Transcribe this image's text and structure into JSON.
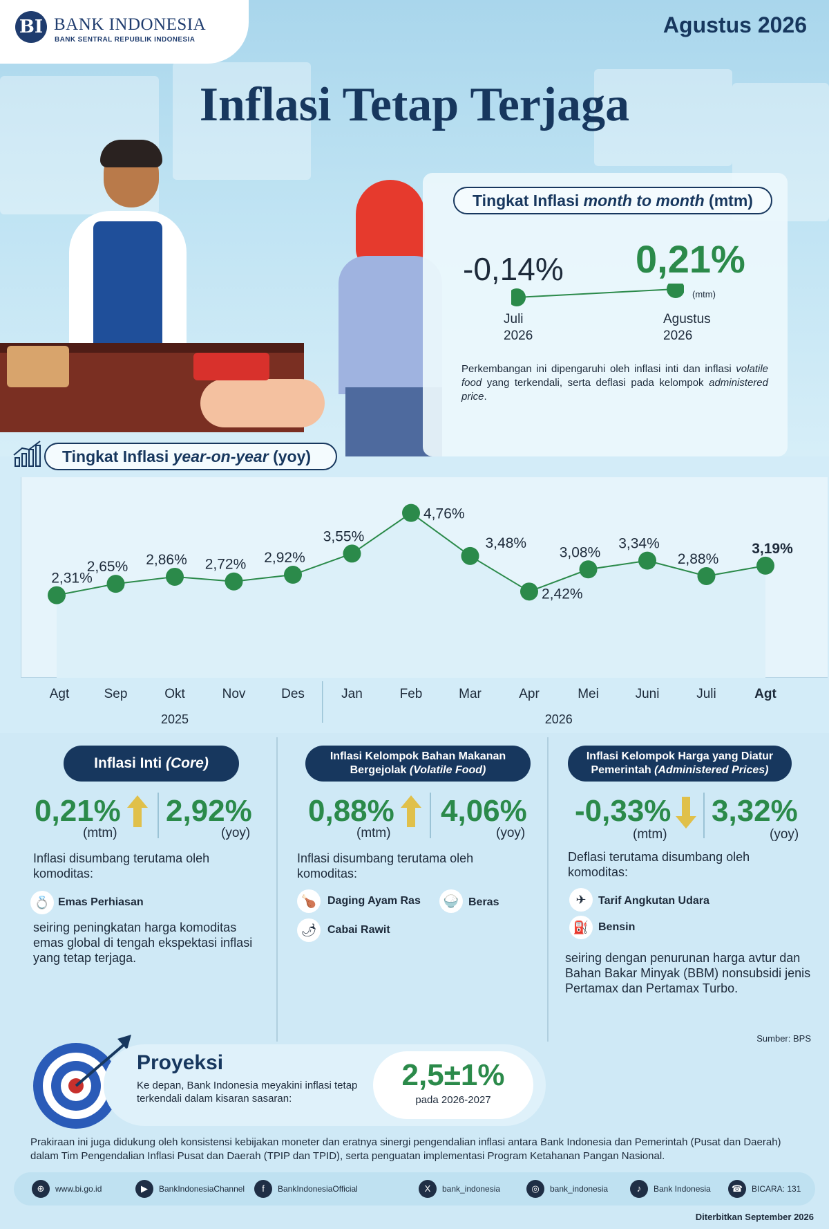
{
  "header": {
    "logo_mark": "BI",
    "org_name": "BANK INDONESIA",
    "org_sub": "BANK SENTRAL REPUBLIK INDONESIA",
    "period": "Agustus 2026",
    "title": "Inflasi Tetap Terjaga"
  },
  "mtm": {
    "pill_prefix": "Tingkat Inflasi ",
    "pill_italic": "month to month",
    "pill_suffix": " (mtm)",
    "prev_value": "-0,14%",
    "prev_label_1": "Juli",
    "prev_label_2": "2026",
    "cur_value": "0,21%",
    "cur_unit": "(mtm)",
    "cur_label_1": "Agustus",
    "cur_label_2": "2026",
    "desc_1": "Perkembangan ini dipengaruhi oleh inflasi inti dan inflasi ",
    "desc_italic_1": "volatile food",
    "desc_2": " yang terkendali, serta deflasi pada kelompok ",
    "desc_italic_2": "administered price",
    "desc_3": "."
  },
  "yoy": {
    "pill_prefix": "Tingkat Inflasi ",
    "pill_italic": "year-on-year",
    "pill_suffix": " (yoy)"
  },
  "chart_data": {
    "type": "line",
    "categories": [
      "Agt",
      "Sep",
      "Okt",
      "Nov",
      "Des",
      "Jan",
      "Feb",
      "Mar",
      "Apr",
      "Mei",
      "Juni",
      "Juli",
      "Agt"
    ],
    "values": [
      2.31,
      2.65,
      2.86,
      2.72,
      2.92,
      3.55,
      4.76,
      3.48,
      2.42,
      3.08,
      3.34,
      2.88,
      3.19
    ],
    "value_labels": [
      "2,31%",
      "2,65%",
      "2,86%",
      "2,72%",
      "2,92%",
      "3,55%",
      "4,76%",
      "3,48%",
      "2,42%",
      "3,08%",
      "3,34%",
      "2,88%",
      "3,19%"
    ],
    "year_groups": [
      {
        "label": "2025",
        "count": 5
      },
      {
        "label": "2026",
        "count": 8
      }
    ],
    "ylim": [
      1.5,
      5.0
    ],
    "grid": false,
    "line_color": "#2b8a4a",
    "point_color": "#2b8a4a"
  },
  "core": {
    "title": "Inflasi Inti ",
    "title_italic": "(Core)",
    "mtm_value": "0,21%",
    "mtm_unit": "(mtm)",
    "yoy_value": "2,92%",
    "yoy_unit": "(yoy)",
    "intro": "Inflasi disumbang terutama oleh komoditas:",
    "items": [
      "Emas Perhiasan"
    ],
    "note": "seiring peningkatan harga komoditas emas global di tengah ekspektasi inflasi yang tetap terjaga."
  },
  "volatile": {
    "title_1": "Inflasi Kelompok Bahan Makanan",
    "title_2": "Bergejolak ",
    "title_italic": "(Volatile Food)",
    "mtm_value": "0,88%",
    "mtm_unit": "(mtm)",
    "yoy_value": "4,06%",
    "yoy_unit": "(yoy)",
    "intro": "Inflasi disumbang terutama oleh komoditas:",
    "items": [
      "Daging Ayam Ras",
      "Beras",
      "Cabai Rawit"
    ]
  },
  "administered": {
    "title_1": "Inflasi Kelompok Harga yang Diatur",
    "title_2": "Pemerintah ",
    "title_italic": "(Administered Prices)",
    "mtm_value": "-0,33%",
    "mtm_unit": "(mtm)",
    "yoy_value": "3,32%",
    "yoy_unit": "(yoy)",
    "intro": "Deflasi terutama disumbang oleh komoditas:",
    "items": [
      "Tarif Angkutan Udara",
      "Bensin"
    ],
    "note": "seiring dengan penurunan harga avtur dan Bahan Bakar Minyak (BBM) nonsubsidi jenis Pertamax dan Pertamax Turbo."
  },
  "source": "Sumber: BPS",
  "projection": {
    "title": "Proyeksi",
    "text": "Ke depan, Bank Indonesia meyakini inflasi tetap terkendali dalam kisaran sasaran:",
    "target": "2,5±1%",
    "target_period": "pada 2026-2027"
  },
  "footnote": "Prakiraan ini juga didukung oleh konsistensi kebijakan moneter dan eratnya sinergi pengendalian inflasi antara Bank Indonesia dan Pemerintah (Pusat dan Daerah) dalam Tim Pengendalian Inflasi Pusat dan Daerah (TPIP dan TPID), serta penguatan implementasi Program Ketahanan Pangan Nasional.",
  "social": [
    {
      "icon": "globe-icon",
      "glyph": "⊕",
      "label": "www.bi.go.id"
    },
    {
      "icon": "youtube-icon",
      "glyph": "▶",
      "label": "BankIndonesiaChannel"
    },
    {
      "icon": "facebook-icon",
      "glyph": "f",
      "label": "BankIndonesiaOfficial"
    },
    {
      "icon": "x-icon",
      "glyph": "X",
      "label": "bank_indonesia"
    },
    {
      "icon": "instagram-icon",
      "glyph": "◎",
      "label": "bank_indonesia"
    },
    {
      "icon": "tiktok-icon",
      "glyph": "♪",
      "label": "Bank Indonesia"
    },
    {
      "icon": "bicara-icon",
      "glyph": "☎",
      "label": "BICARA: 131"
    }
  ],
  "published": "Diterbitkan September 2026",
  "colors": {
    "navy": "#17375e",
    "green": "#2b8a4a",
    "up_arrow": "#e0c04a",
    "down_arrow": "#e0c04a"
  }
}
